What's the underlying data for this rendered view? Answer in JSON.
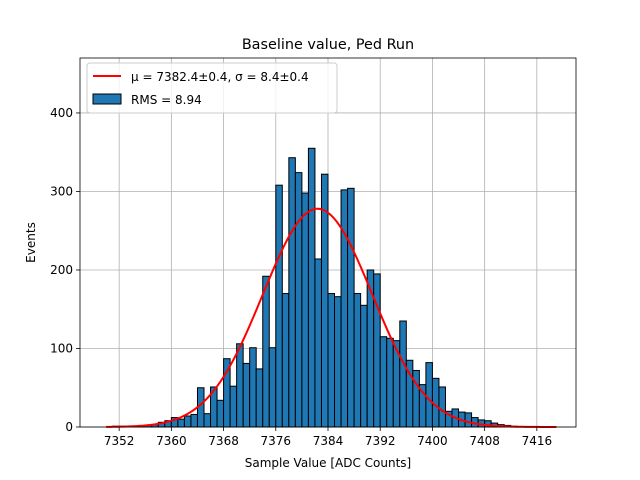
{
  "chart_data": {
    "type": "bar",
    "title": "Baseline value, Ped Run",
    "xlabel": "Sample Value [ADC Counts]",
    "ylabel": "Events",
    "xlim": [
      7346,
      7422
    ],
    "ylim": [
      0,
      470
    ],
    "xticks": [
      7352,
      7360,
      7368,
      7376,
      7384,
      7392,
      7400,
      7408,
      7416
    ],
    "yticks": [
      0,
      100,
      200,
      300,
      400
    ],
    "grid": true,
    "legend_position": "top-left",
    "bin_width": 1,
    "bins_start": [
      7351,
      7352,
      7353,
      7354,
      7355,
      7356,
      7357,
      7358,
      7359,
      7360,
      7361,
      7362,
      7363,
      7364,
      7365,
      7366,
      7367,
      7368,
      7369,
      7370,
      7371,
      7372,
      7373,
      7374,
      7375,
      7376,
      7377,
      7378,
      7379,
      7380,
      7381,
      7382,
      7383,
      7384,
      7385,
      7386,
      7387,
      7388,
      7389,
      7390,
      7391,
      7392,
      7393,
      7394,
      7395,
      7396,
      7397,
      7398,
      7399,
      7400,
      7401,
      7402,
      7403,
      7404,
      7405,
      7406,
      7407,
      7408,
      7409,
      7410,
      7411,
      7412
    ],
    "counts": [
      1,
      1,
      0,
      1,
      1,
      2,
      3,
      6,
      8,
      12,
      10,
      14,
      16,
      50,
      17,
      51,
      34,
      87,
      52,
      106,
      81,
      101,
      74,
      192,
      101,
      308,
      170,
      343,
      324,
      298,
      355,
      214,
      322,
      170,
      166,
      302,
      304,
      170,
      155,
      200,
      195,
      115,
      113,
      110,
      135,
      85,
      72,
      54,
      82,
      62,
      51,
      20,
      23,
      19,
      18,
      12,
      9,
      8,
      5,
      3,
      2,
      1
    ],
    "series": [
      {
        "type": "histogram",
        "name": "RMS = 8.94",
        "color": "#1f77b4"
      },
      {
        "type": "line",
        "name": "μ = 7382.4±0.4, σ = 8.4±0.4",
        "color": "#ff0000",
        "gaussian": {
          "amplitude": 278,
          "mean": 7382.4,
          "sigma": 8.4
        },
        "x_range": [
          7350,
          7419
        ]
      }
    ]
  }
}
